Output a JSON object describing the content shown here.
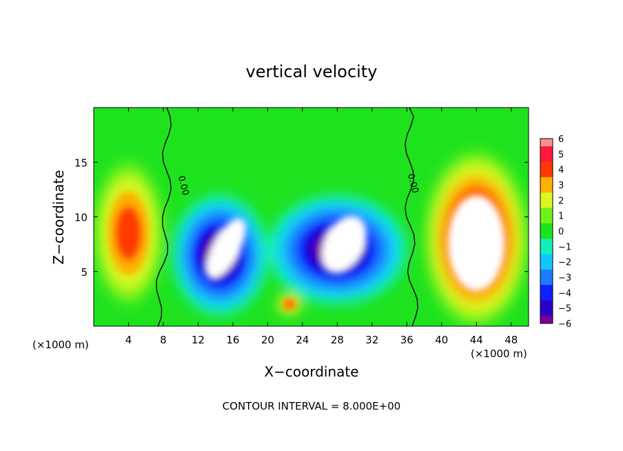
{
  "chart_data": {
    "type": "heatmap",
    "title": "vertical velocity",
    "xlabel": "X−coordinate",
    "ylabel": "Z−coordinate",
    "x_unit_label_left": "(×1000 m)",
    "x_unit_label_right": "(×1000 m)",
    "xlim": [
      0,
      50
    ],
    "ylim": [
      0,
      20
    ],
    "x_ticks": [
      4,
      8,
      12,
      16,
      20,
      24,
      28,
      32,
      36,
      40,
      44,
      48
    ],
    "y_ticks": [
      5,
      10,
      15
    ],
    "colorbar": {
      "range": [
        -6,
        6
      ],
      "labels": [
        "6",
        "5",
        "4",
        "3",
        "2",
        "1",
        "0",
        "−1",
        "−2",
        "−3",
        "−4",
        "−5",
        "−6"
      ],
      "label_values": [
        6,
        5,
        4,
        3,
        2,
        1,
        0,
        -1,
        -2,
        -3,
        -4,
        -5,
        -6
      ]
    },
    "contour_label": "0.00",
    "zero_contour_labels": [
      {
        "x": 10,
        "z": 12.8
      },
      {
        "x": 36.4,
        "z": 13.0
      }
    ],
    "features": [
      {
        "kind": "downdraft",
        "x_range": [
          9,
          20
        ],
        "z_range": [
          1,
          12
        ],
        "min_value": -6
      },
      {
        "kind": "downdraft",
        "x_range": [
          20,
          36
        ],
        "z_range": [
          2,
          12
        ],
        "min_value": -6
      },
      {
        "kind": "updraft",
        "x_range": [
          38,
          50
        ],
        "z_range": [
          0,
          16
        ],
        "max_value": 6
      },
      {
        "kind": "updraft",
        "x_range": [
          0,
          8
        ],
        "z_range": [
          2,
          15
        ],
        "max_value": 4
      },
      {
        "kind": "updraft",
        "x_range": [
          21,
          24
        ],
        "z_range": [
          1,
          3
        ],
        "max_value": 4
      }
    ],
    "footer": "CONTOUR INTERVAL =  8.000E+00"
  }
}
